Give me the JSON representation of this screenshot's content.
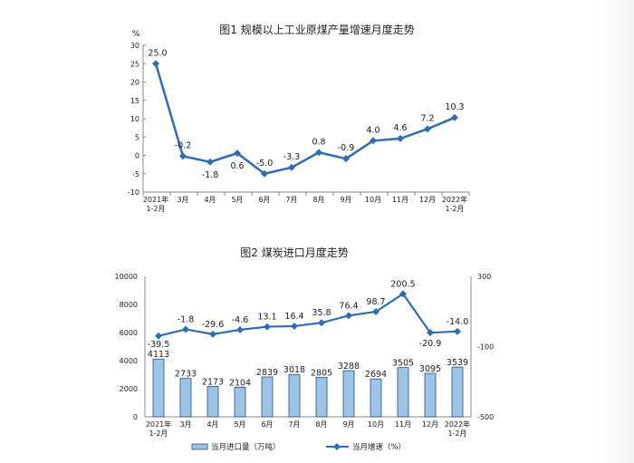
{
  "chart_data": [
    {
      "type": "line",
      "title": "图1  规模以上工业原煤产量增速月度走势",
      "ylabel": "%",
      "categories": [
        "2021年\n1-2月",
        "3月",
        "4月",
        "5月",
        "6月",
        "7月",
        "8月",
        "9月",
        "10月",
        "11月",
        "12月",
        "2022年\n1-2月"
      ],
      "values": [
        25.0,
        -0.2,
        -1.8,
        0.6,
        -5.0,
        -3.3,
        0.8,
        -0.9,
        4.0,
        4.6,
        7.2,
        10.3
      ],
      "ylim": [
        -10,
        30
      ],
      "yticks": [
        30,
        25,
        20,
        15,
        10,
        5,
        0,
        -5,
        -10
      ],
      "grid": false,
      "color": "#2E6DB4"
    },
    {
      "type": "bar+line",
      "title": "图2  煤炭进口月度走势",
      "categories": [
        "2021年\n1-2月",
        "3月",
        "4月",
        "5月",
        "6月",
        "7月",
        "8月",
        "9月",
        "10月",
        "11月",
        "12月",
        "2022年\n1-2月"
      ],
      "series": [
        {
          "name": "当月进口量（万吨）",
          "type": "bar",
          "axis": "left",
          "values": [
            4113,
            2733,
            2173,
            2104,
            2839,
            3018,
            2805,
            3288,
            2694,
            3505,
            3095,
            3539
          ],
          "color": "#9DC3E6"
        },
        {
          "name": "当月增速（%）",
          "type": "line",
          "axis": "right",
          "values": [
            -39.5,
            -1.8,
            -29.6,
            -4.6,
            13.1,
            16.4,
            35.8,
            76.4,
            98.7,
            200.5,
            -20.9,
            -14.0
          ],
          "color": "#2E6DB4"
        }
      ],
      "ylim_left": [
        0,
        10000
      ],
      "yticks_left": [
        10000,
        8000,
        6000,
        4000,
        2000,
        0
      ],
      "ylim_right": [
        -500,
        300
      ],
      "yticks_right": [
        300,
        -100,
        -500
      ],
      "legend": "bottom",
      "grid": false
    }
  ]
}
